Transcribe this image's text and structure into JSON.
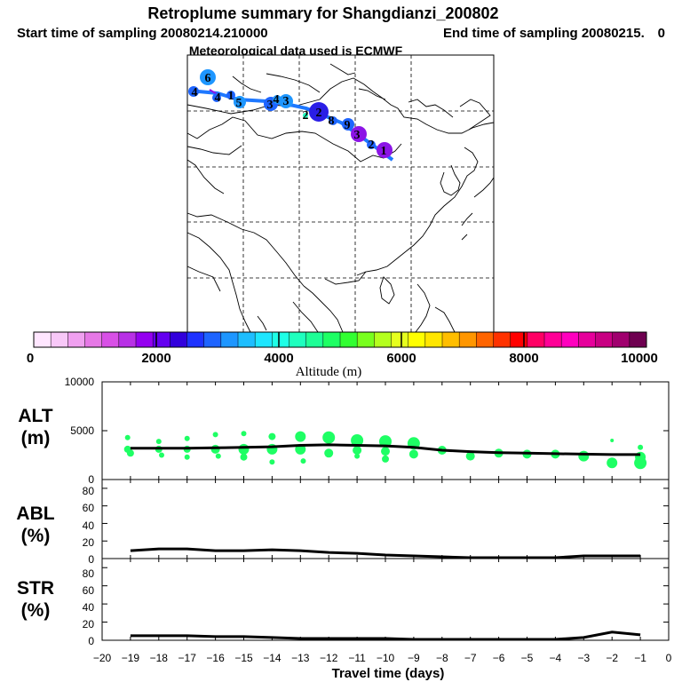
{
  "header": {
    "title": "Retroplume summary for Shangdianzi_200802",
    "start_label": "Start time of sampling 20080214.210000",
    "end_label": "End time of sampling 20080215.",
    "end_value": "0",
    "met_label": "Meteorological data used is ECMWF"
  },
  "colorbar": {
    "colors": [
      "#ffe6ff",
      "#f8c8f8",
      "#f0a0f0",
      "#e678e6",
      "#d850e6",
      "#b830e6",
      "#9400f0",
      "#6400f0",
      "#3200dc",
      "#1e32ff",
      "#1e64ff",
      "#1e96ff",
      "#1ebeff",
      "#1ee6ff",
      "#1effe6",
      "#1effbe",
      "#1eff96",
      "#1eff64",
      "#32ff32",
      "#78ff1e",
      "#b4ff1e",
      "#e6ff1e",
      "#ffff00",
      "#ffe600",
      "#ffbe00",
      "#ff9600",
      "#ff6400",
      "#ff3200",
      "#ff0000",
      "#ff0064",
      "#ff0096",
      "#ff00be",
      "#e6009b",
      "#c80082",
      "#a0006e",
      "#6e0050"
    ],
    "tick_labels": [
      "0",
      "2000",
      "4000",
      "6000",
      "8000",
      "10000"
    ],
    "label": "Altitude (m)"
  },
  "map": {
    "plume_labels": [
      "6",
      "4",
      "4",
      "1",
      "5",
      "3",
      "4",
      "3",
      "2",
      "2",
      "8",
      "9",
      "3",
      "2",
      "1"
    ],
    "plume_colors": {
      "light_blue": "#1e96ff",
      "blue": "#1e64ff",
      "dark_blue": "#2a1ee6",
      "purple": "#8c14e6",
      "track": "#1e78ff"
    }
  },
  "panels": {
    "alt": {
      "label_top": "ALT",
      "label_bottom": "(m)",
      "ytick_labels": [
        "10000",
        "5000",
        "0"
      ]
    },
    "abl": {
      "label_top": "ABL",
      "label_bottom": "(%)",
      "ytick_labels": [
        "80",
        "60",
        "40",
        "20",
        "0"
      ]
    },
    "str": {
      "label_top": "STR",
      "label_bottom": "(%)",
      "ytick_labels": [
        "80",
        "60",
        "40",
        "20",
        "0"
      ]
    },
    "xtick_labels": [
      "−20",
      "−19",
      "−18",
      "−17",
      "−16",
      "−15",
      "−14",
      "−13",
      "−12",
      "−11",
      "−10",
      "−9",
      "−8",
      "−7",
      "−6",
      "−5",
      "−4",
      "−3",
      "−2",
      "−1",
      "0"
    ],
    "xlabel": "Travel time (days)"
  },
  "chart_data": [
    {
      "type": "line",
      "title": "ALT (m)",
      "ylabel": "ALT (m)",
      "xlabel": "Travel time (days)",
      "xlim": [
        -20,
        0
      ],
      "ylim": [
        0,
        10000
      ],
      "line": {
        "x": [
          -19,
          -18,
          -17,
          -16,
          -15,
          -14,
          -13,
          -12,
          -11,
          -10,
          -9,
          -8,
          -7,
          -6,
          -5,
          -4,
          -3,
          -2,
          -1
        ],
        "y": [
          3200,
          3200,
          3200,
          3250,
          3300,
          3350,
          3500,
          3550,
          3500,
          3450,
          3300,
          3000,
          2850,
          2750,
          2700,
          2650,
          2600,
          2550,
          2550
        ]
      },
      "scatter": {
        "x": [
          -19.1,
          -19.1,
          -19,
          -18,
          -18,
          -17.9,
          -17,
          -17,
          -17,
          -16,
          -16,
          -15.9,
          -15,
          -15,
          -15,
          -14,
          -14,
          -14,
          -13,
          -13,
          -12.9,
          -12,
          -12,
          -11,
          -11,
          -11,
          -10,
          -10,
          -10,
          -9,
          -9,
          -8,
          -7,
          -6,
          -5,
          -4,
          -3,
          -2,
          -2,
          -1,
          -1,
          -1
        ],
        "y": [
          4300,
          3100,
          2700,
          3900,
          3100,
          2500,
          4200,
          3100,
          2300,
          4600,
          3100,
          2400,
          4700,
          3100,
          2300,
          4400,
          3100,
          1800,
          4400,
          3100,
          1900,
          4300,
          2700,
          4000,
          3000,
          2400,
          3900,
          2900,
          2100,
          3700,
          2600,
          3000,
          2400,
          2700,
          2600,
          2600,
          2400,
          4000,
          1700,
          3300,
          2300,
          1700
        ],
        "size": [
          3,
          4,
          4,
          3,
          4,
          3,
          3,
          4,
          3,
          3,
          5,
          3,
          3,
          6,
          4,
          4,
          6,
          3,
          6,
          6,
          3,
          7,
          5,
          7,
          5,
          3,
          7,
          5,
          4,
          7,
          5,
          5,
          5,
          5,
          5,
          5,
          6,
          2,
          6,
          3,
          6,
          7
        ],
        "color": "#1eff64"
      }
    },
    {
      "type": "line",
      "title": "ABL (%)",
      "ylabel": "ABL (%)",
      "xlabel": "Travel time (days)",
      "xlim": [
        -20,
        0
      ],
      "ylim": [
        0,
        90
      ],
      "x": [
        -19,
        -18,
        -17,
        -16,
        -15,
        -14,
        -13,
        -12,
        -11,
        -10,
        -9,
        -8,
        -7,
        -6,
        -5,
        -4,
        -3,
        -2,
        -1
      ],
      "y": [
        9,
        11,
        11,
        9,
        9,
        10,
        9,
        7,
        6,
        4,
        3,
        2,
        1,
        1,
        1,
        1,
        3,
        3,
        3
      ]
    },
    {
      "type": "line",
      "title": "STR (%)",
      "ylabel": "STR (%)",
      "xlabel": "Travel time (days)",
      "xlim": [
        -20,
        0
      ],
      "ylim": [
        0,
        90
      ],
      "x": [
        -19,
        -18,
        -17,
        -16,
        -15,
        -14,
        -13,
        -12,
        -11,
        -10,
        -9,
        -8,
        -7,
        -6,
        -5,
        -4,
        -3,
        -2,
        -1
      ],
      "y": [
        5,
        5,
        5,
        4,
        4,
        3,
        2,
        2,
        2,
        2,
        1,
        1,
        1,
        1,
        1,
        1,
        3,
        9,
        6
      ]
    }
  ]
}
